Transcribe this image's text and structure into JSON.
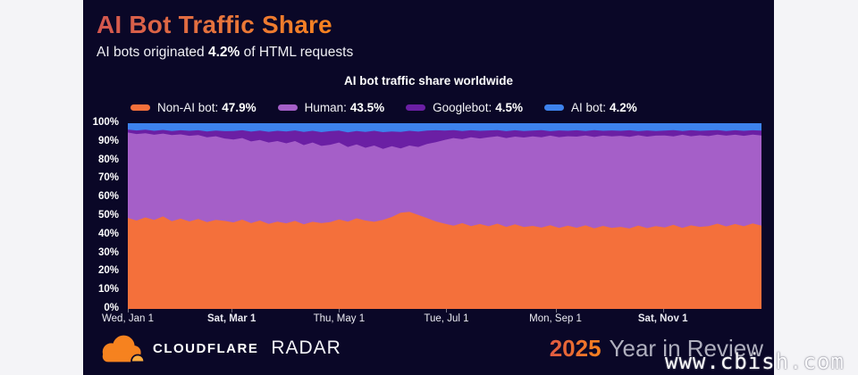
{
  "page_bg": "#F4F4F7",
  "card_bg": "#0A0727",
  "header": {
    "title": "AI Bot Traffic Share",
    "subtitle_prefix": "AI bots originated ",
    "subtitle_bold": "4.2%",
    "subtitle_suffix": " of HTML requests"
  },
  "chart": {
    "title": "AI bot traffic share worldwide",
    "legend": [
      {
        "label": "Non-AI bot:",
        "value": "47.9%",
        "color": "#F4703B"
      },
      {
        "label": "Human:",
        "value": "43.5%",
        "color": "#A55FC8"
      },
      {
        "label": "Googlebot:",
        "value": "4.5%",
        "color": "#6B1FA4"
      },
      {
        "label": "AI bot:",
        "value": "4.2%",
        "color": "#3D82EC"
      }
    ]
  },
  "axes": {
    "y_ticks": [
      "100%",
      "90%",
      "80%",
      "70%",
      "60%",
      "50%",
      "40%",
      "30%",
      "20%",
      "10%",
      "0%"
    ],
    "x_ticks": [
      {
        "label": "Wed, Jan 1",
        "bold": false,
        "day": 0
      },
      {
        "label": "Sat, Mar 1",
        "bold": true,
        "day": 59
      },
      {
        "label": "Thu, May 1",
        "bold": false,
        "day": 120
      },
      {
        "label": "Tue, Jul 1",
        "bold": false,
        "day": 181
      },
      {
        "label": "Mon, Sep 1",
        "bold": false,
        "day": 243
      },
      {
        "label": "Sat, Nov 1",
        "bold": true,
        "day": 304
      }
    ]
  },
  "chart_data": {
    "type": "area",
    "stacked": true,
    "title": "AI bot traffic share worldwide",
    "unit": "%",
    "ylim": [
      0,
      100
    ],
    "legend_position": "top",
    "grid": false,
    "x_unit": "day_of_year_2025",
    "x_days": [
      0,
      5,
      10,
      15,
      20,
      25,
      30,
      35,
      40,
      45,
      50,
      55,
      60,
      65,
      70,
      75,
      80,
      85,
      90,
      95,
      100,
      105,
      110,
      115,
      120,
      125,
      130,
      135,
      140,
      145,
      150,
      155,
      160,
      165,
      170,
      175,
      180,
      185,
      190,
      195,
      200,
      205,
      210,
      215,
      220,
      225,
      230,
      235,
      240,
      245,
      250,
      255,
      260,
      265,
      270,
      275,
      280,
      285,
      290,
      295,
      300,
      305,
      310,
      315,
      320,
      325,
      330,
      335,
      340,
      345,
      350,
      355,
      360
    ],
    "note": "tops are cumulative stacked share boundaries in percent; yearly averages: Non-AI bot 47.9%, Human 43.5%, Googlebot 4.5%, AI bot 4.2%",
    "series": [
      {
        "name": "Non-AI bot",
        "average": 47.9,
        "color": "#F4703B",
        "tops": [
          49.0,
          47.6,
          49.3,
          47.9,
          49.8,
          47.2,
          48.6,
          47.1,
          48.4,
          46.8,
          48.0,
          47.4,
          46.6,
          48.1,
          46.2,
          47.6,
          45.8,
          47.0,
          46.1,
          47.4,
          45.6,
          46.9,
          46.2,
          46.8,
          48.2,
          47.0,
          48.8,
          47.6,
          46.9,
          48.0,
          49.5,
          51.8,
          52.3,
          50.6,
          48.9,
          47.1,
          45.9,
          44.8,
          46.2,
          44.6,
          45.7,
          44.5,
          45.9,
          44.2,
          45.6,
          44.1,
          44.7,
          43.8,
          45.1,
          43.6,
          44.8,
          43.7,
          45.0,
          43.4,
          44.7,
          43.6,
          44.2,
          43.3,
          44.9,
          43.5,
          44.6,
          43.9,
          45.3,
          43.6,
          45.0,
          44.2,
          44.6,
          45.9,
          44.4,
          45.7,
          44.5,
          46.0,
          44.8
        ]
      },
      {
        "name": "Human",
        "average": 43.5,
        "color": "#A55FC8",
        "tops": [
          95.0,
          94.2,
          94.6,
          93.8,
          94.4,
          93.6,
          94.0,
          93.2,
          93.6,
          92.4,
          93.0,
          91.8,
          91.2,
          92.0,
          90.2,
          91.0,
          89.6,
          90.4,
          89.2,
          90.4,
          88.2,
          89.6,
          87.8,
          88.4,
          89.6,
          87.2,
          88.6,
          86.8,
          88.0,
          86.2,
          87.6,
          86.4,
          88.0,
          87.2,
          88.8,
          89.8,
          91.0,
          92.0,
          91.4,
          92.4,
          91.8,
          92.4,
          93.0,
          92.0,
          92.8,
          92.3,
          92.9,
          92.4,
          93.3,
          92.5,
          93.0,
          92.8,
          93.4,
          92.6,
          93.3,
          92.9,
          93.2,
          92.7,
          93.5,
          92.8,
          93.3,
          93.4,
          92.9,
          93.8,
          93.0,
          93.5,
          93.1,
          93.9,
          93.3,
          93.8,
          93.2,
          93.9,
          93.4
        ]
      },
      {
        "name": "Googlebot",
        "average": 4.5,
        "color": "#6B1FA4",
        "tops": [
          96.6,
          96.1,
          96.5,
          95.9,
          96.4,
          95.8,
          96.2,
          95.9,
          96.2,
          95.6,
          96.0,
          95.7,
          95.8,
          96.2,
          95.5,
          96.0,
          95.4,
          95.9,
          95.6,
          96.1,
          95.3,
          95.9,
          95.2,
          95.7,
          96.0,
          95.1,
          95.8,
          95.3,
          95.9,
          95.2,
          95.6,
          95.3,
          95.9,
          95.5,
          96.0,
          96.2,
          96.0,
          96.3,
          95.8,
          96.2,
          95.9,
          96.1,
          96.3,
          95.7,
          96.2,
          95.8,
          96.0,
          96.3,
          95.7,
          96.1,
          95.9,
          96.2,
          95.8,
          96.3,
          95.9,
          96.1,
          95.9,
          96.2,
          95.7,
          96.1,
          95.8,
          96.0,
          96.3,
          95.8,
          96.2,
          95.9,
          96.1,
          96.3,
          95.8,
          96.2,
          95.9,
          96.2,
          96.0
        ]
      },
      {
        "name": "AI bot",
        "average": 4.2,
        "color": "#3D82EC",
        "tops_full": 100
      }
    ]
  },
  "footer": {
    "brand": "CLOUDFLARE",
    "product": "RADAR",
    "year": "2025",
    "tagline": "Year in Review"
  },
  "watermark": "www.cbish.com"
}
